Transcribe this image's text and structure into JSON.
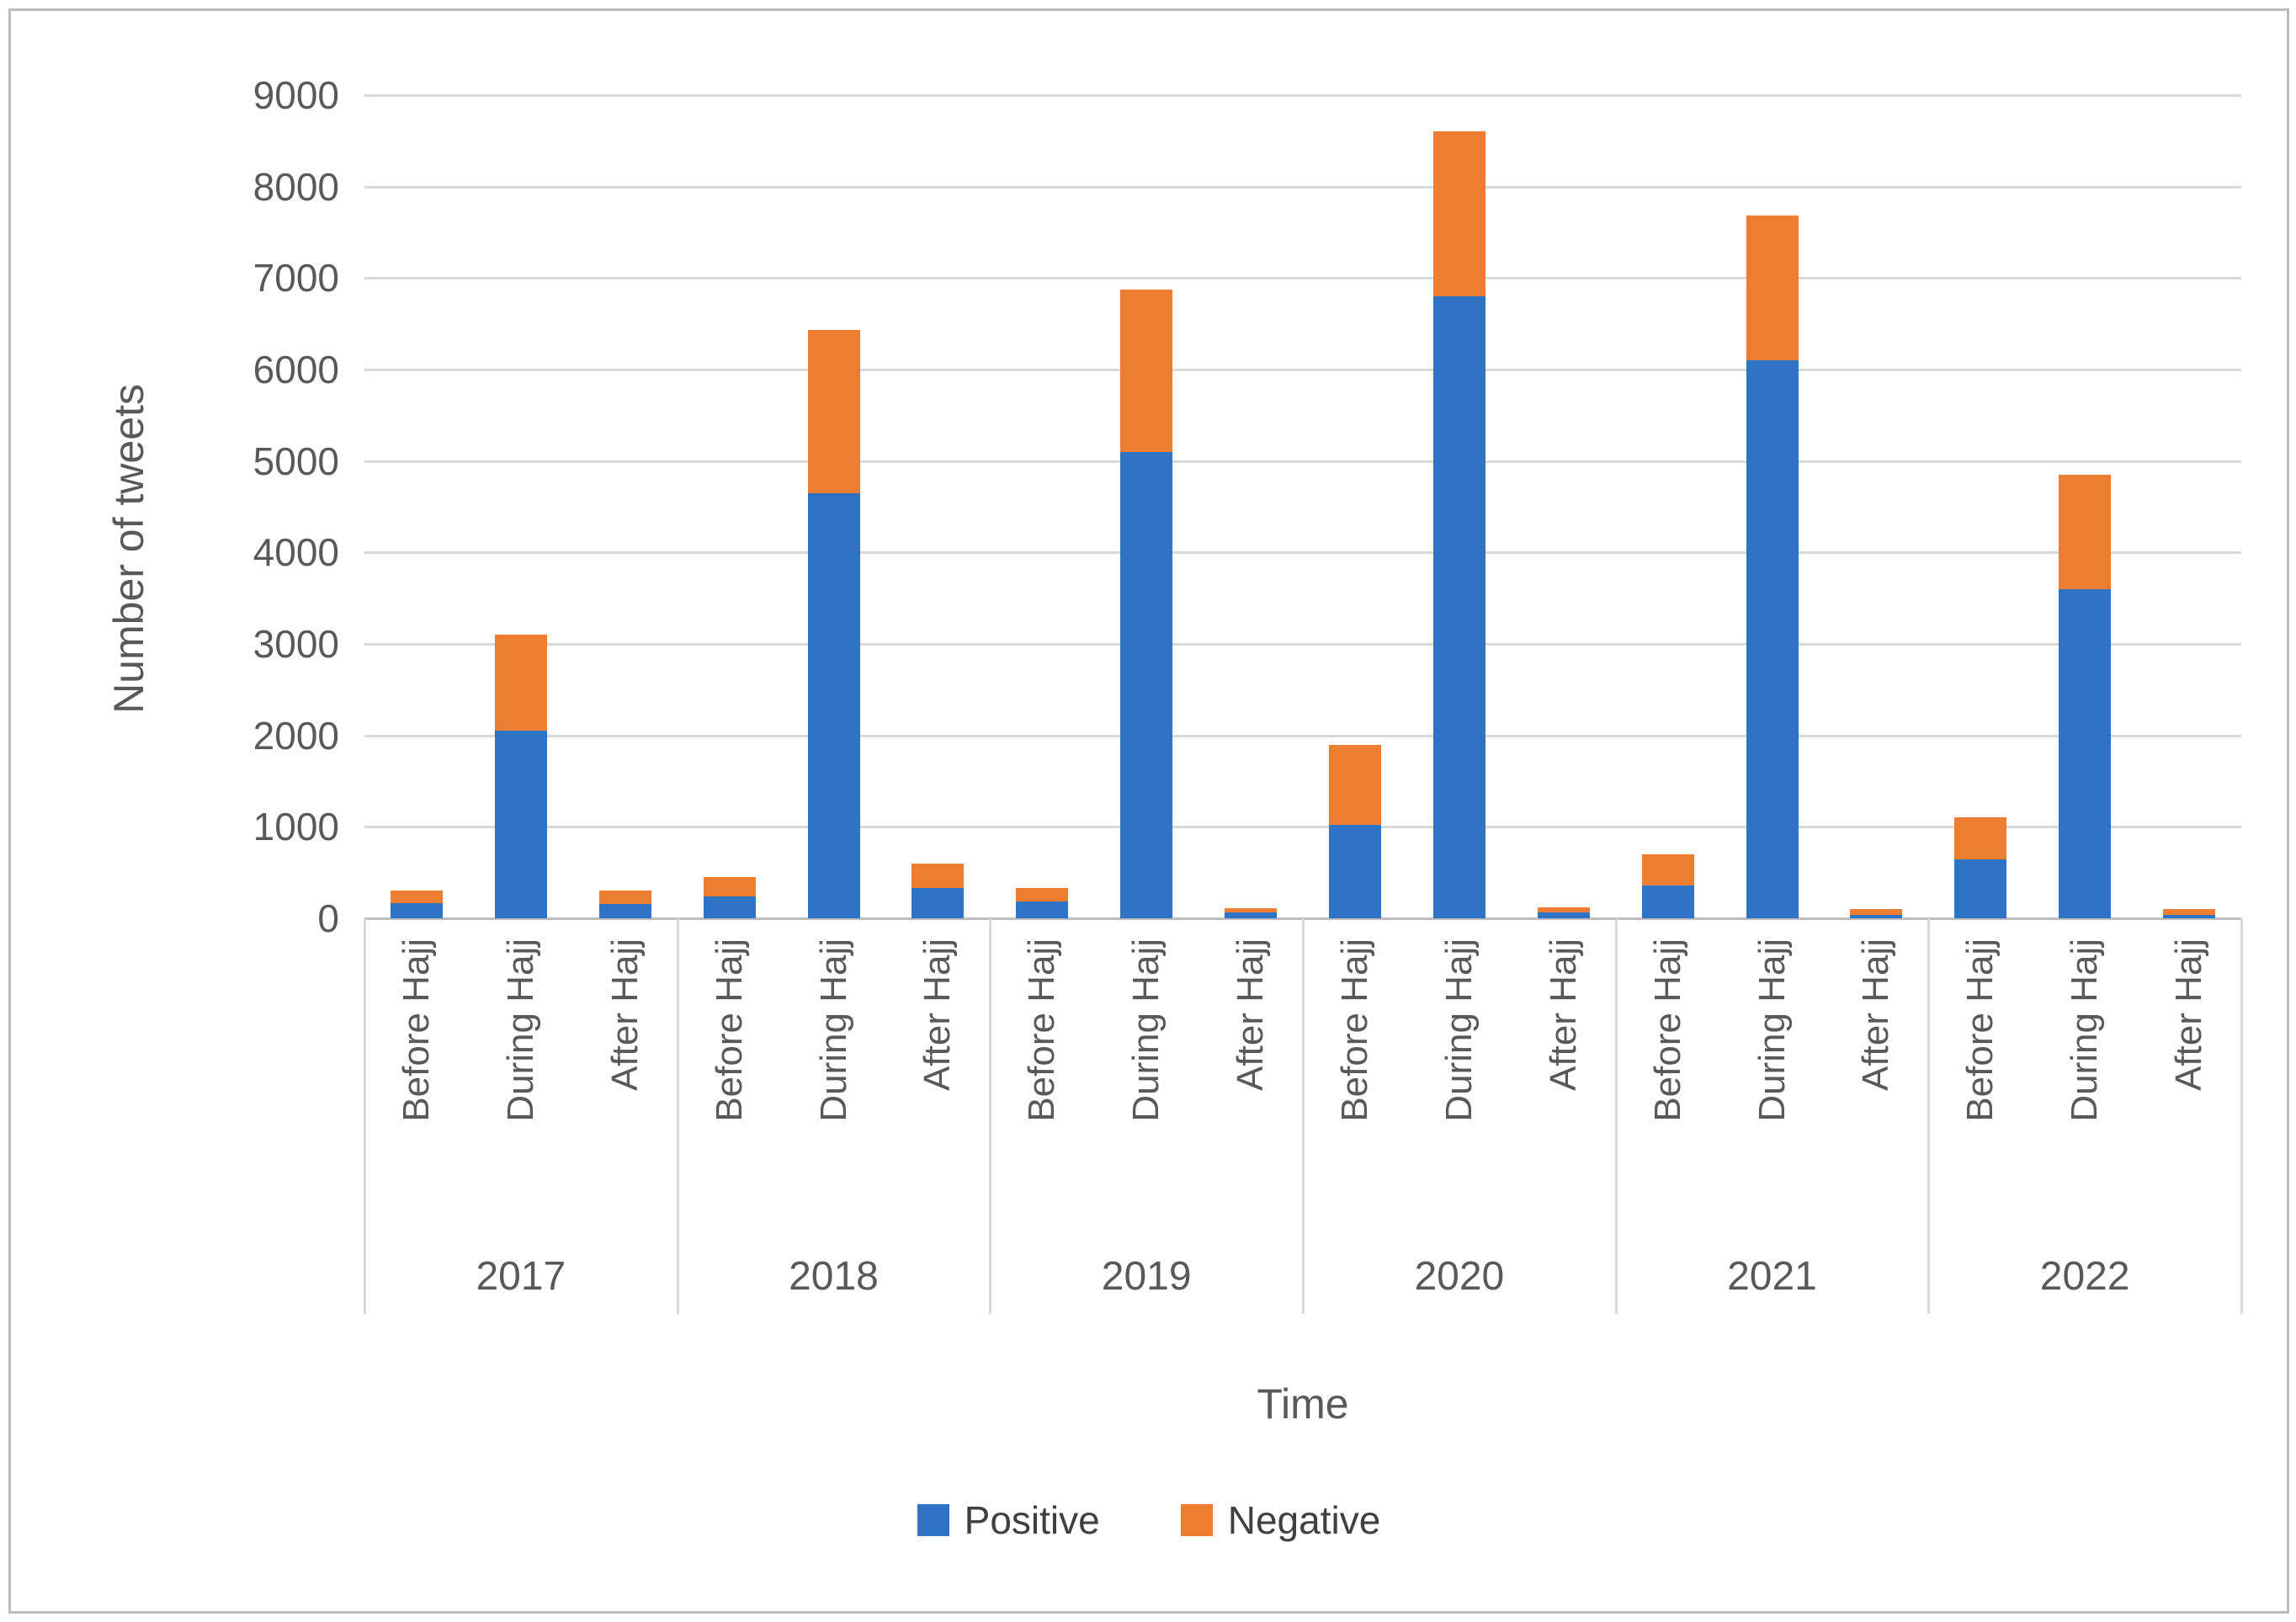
{
  "chart_data": {
    "type": "bar",
    "stacked": true,
    "title": "",
    "xlabel": "Time",
    "ylabel": "Number of tweets",
    "ylim": [
      0,
      9000
    ],
    "yticks": [
      0,
      1000,
      2000,
      3000,
      4000,
      5000,
      6000,
      7000,
      8000,
      9000
    ],
    "grid": "horizontal",
    "legend_position": "bottom",
    "legend": [
      {
        "label": "Positive",
        "color": "#2e73c4"
      },
      {
        "label": "Negative",
        "color": "#ed7d31"
      }
    ],
    "period_labels": [
      "Before Hajj",
      "During Hajj",
      "After Hajj"
    ],
    "series_names": [
      "Positive",
      "Negative"
    ],
    "groups": [
      {
        "year": "2017",
        "bars": [
          {
            "period": "Before Hajj",
            "positive": 170,
            "negative": 130
          },
          {
            "period": "During Hajj",
            "positive": 2050,
            "negative": 1050
          },
          {
            "period": "After Hajj",
            "positive": 160,
            "negative": 140
          }
        ]
      },
      {
        "year": "2018",
        "bars": [
          {
            "period": "Before Hajj",
            "positive": 240,
            "negative": 210
          },
          {
            "period": "During Hajj",
            "positive": 4650,
            "negative": 1780
          },
          {
            "period": "After Hajj",
            "positive": 330,
            "negative": 270
          }
        ]
      },
      {
        "year": "2019",
        "bars": [
          {
            "period": "Before Hajj",
            "positive": 180,
            "negative": 150
          },
          {
            "period": "During Hajj",
            "positive": 5100,
            "negative": 1770
          },
          {
            "period": "After Hajj",
            "positive": 60,
            "negative": 50
          }
        ]
      },
      {
        "year": "2020",
        "bars": [
          {
            "period": "Before Hajj",
            "positive": 1020,
            "negative": 880
          },
          {
            "period": "During Hajj",
            "positive": 6800,
            "negative": 1800
          },
          {
            "period": "After Hajj",
            "positive": 60,
            "negative": 60
          }
        ]
      },
      {
        "year": "2021",
        "bars": [
          {
            "period": "Before Hajj",
            "positive": 360,
            "negative": 340
          },
          {
            "period": "During Hajj",
            "positive": 6100,
            "negative": 1580
          },
          {
            "period": "After Hajj",
            "positive": 40,
            "negative": 60
          }
        ]
      },
      {
        "year": "2022",
        "bars": [
          {
            "period": "Before Hajj",
            "positive": 640,
            "negative": 460
          },
          {
            "period": "During Hajj",
            "positive": 3600,
            "negative": 1250
          },
          {
            "period": "After Hajj",
            "positive": 40,
            "negative": 60
          }
        ]
      }
    ]
  }
}
